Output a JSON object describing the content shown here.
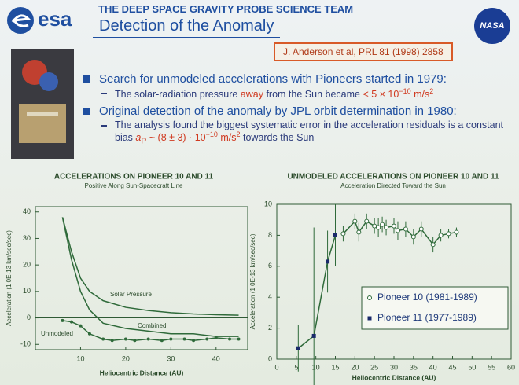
{
  "header": {
    "logo_left": "esa",
    "team": "THE DEEP SPACE GRAVITY PROBE SCIENCE TEAM",
    "title": "Detection of the Anomaly",
    "logo_right": "NASA",
    "reference": "J. Anderson et al, PRL 81 (1998) 2858"
  },
  "bullets": [
    {
      "text": "Search for unmodeled accelerations with Pioneers started in 1979:",
      "sub": [
        "The solar-radiation pressure ",
        "away",
        " from the Sun became ",
        "< 5 × 10",
        "−10",
        " m/s",
        "2"
      ]
    },
    {
      "text": "Original detection of the anomaly by JPL orbit determination in 1980:",
      "sub": [
        "The analysis found the biggest systematic error in the acceleration residuals is a constant bias ",
        "a",
        "P",
        " ~ (8 ± 3) · 10",
        "−10",
        " m/s",
        "2",
        " towards the Sun"
      ]
    }
  ],
  "chart_data": [
    {
      "type": "line",
      "title": "ACCELERATIONS ON PIONEER 10 AND 11",
      "subtitle": "Positive Along Sun-Spacecraft Line",
      "y_label": "Acceleration (1 0E-13 km/sec/sec)",
      "x_label": "Heliocentric Distance (AU)",
      "xlim": [
        0,
        47
      ],
      "xticks": [
        10,
        20,
        30,
        40
      ],
      "ylim": [
        -12,
        42
      ],
      "yticks": [
        -10,
        0,
        10,
        20,
        30,
        40
      ],
      "series": [
        {
          "name": "Solar Pressure",
          "color": "#2f6a3a",
          "x": [
            6,
            8,
            10,
            12,
            15,
            20,
            25,
            30,
            35,
            40,
            45
          ],
          "values": [
            38,
            25,
            15,
            10,
            6.5,
            4,
            2.8,
            2,
            1.5,
            1.2,
            1
          ]
        },
        {
          "name": "Combined",
          "color": "#2f6a3a",
          "x": [
            6,
            8,
            10,
            12,
            15,
            20,
            25,
            30,
            35,
            40,
            45
          ],
          "values": [
            38,
            22,
            10,
            3,
            -2,
            -4,
            -5,
            -6,
            -6,
            -7,
            -7
          ]
        },
        {
          "name": "Unmodeled",
          "color": "#2f6a3a",
          "marker": "circle",
          "x": [
            6,
            8,
            10,
            12,
            15,
            17,
            20,
            22,
            25,
            28,
            30,
            33,
            35,
            38,
            40,
            43,
            45
          ],
          "values": [
            -1,
            -1.5,
            -3,
            -6,
            -8,
            -8.5,
            -8,
            -8.5,
            -8,
            -8.5,
            -8,
            -8,
            -8.5,
            -8,
            -7.5,
            -8,
            -8
          ]
        }
      ]
    },
    {
      "type": "line",
      "title": "UNMODELED ACCELERATIONS ON PIONEER 10 AND 11",
      "subtitle": "Acceleration Directed Toward the Sun",
      "y_label": "Acceleration (1 0E-13 km/sec/sec)",
      "x_label": "Heliocentric Distance (AU)",
      "xlim": [
        0,
        60
      ],
      "xticks": [
        0,
        5,
        10,
        15,
        20,
        25,
        30,
        35,
        40,
        45,
        50,
        55,
        60
      ],
      "ylim": [
        0,
        10
      ],
      "yticks": [
        0,
        2,
        4,
        6,
        8,
        10
      ],
      "legend": "lower right",
      "series": [
        {
          "name": "Pioneer 10 (1981-1989)",
          "color": "#2f6a3a",
          "marker": "open-circle",
          "x": [
            17,
            20,
            21,
            23,
            25,
            26,
            27,
            28,
            30,
            31,
            33,
            35,
            37,
            40,
            42,
            44,
            46
          ],
          "values": [
            8.1,
            8.9,
            8.2,
            8.9,
            8.6,
            8.5,
            8.7,
            8.5,
            8.6,
            8.3,
            8.4,
            7.9,
            8.4,
            7.4,
            8.0,
            8.1,
            8.2
          ],
          "errors": [
            0.5,
            0.5,
            0.6,
            0.5,
            0.5,
            0.6,
            0.5,
            0.5,
            0.5,
            0.6,
            0.5,
            0.5,
            0.5,
            0.5,
            0.4,
            0.3,
            0.3
          ]
        },
        {
          "name": "Pioneer 11 (1977-1989)",
          "color": "#2f6a3a",
          "marker": "filled-square",
          "x": [
            5.5,
            9.5,
            13,
            15
          ],
          "values": [
            0.7,
            1.5,
            6.3,
            8.0
          ],
          "errors": [
            1.5,
            7,
            2,
            2
          ]
        }
      ]
    }
  ]
}
